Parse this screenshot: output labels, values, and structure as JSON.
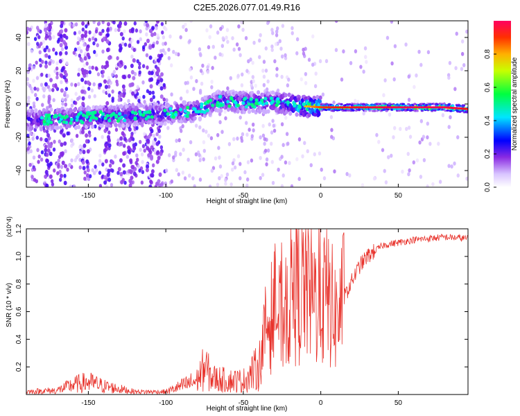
{
  "title": "C2E5.2026.077.01.49.R16",
  "chart_data": [
    {
      "type": "heatmap",
      "name": "spectrogram",
      "xlabel": "Height of straight line (km)",
      "ylabel": "Frequency (Hz)",
      "xlim": [
        -190,
        95
      ],
      "ylim": [
        -50,
        50
      ],
      "xticks": [
        -150,
        -100,
        -50,
        0,
        50
      ],
      "yticks": [
        -40,
        -20,
        0,
        20,
        40
      ],
      "colorbar": {
        "label": "Normalized spectral amplitude",
        "range": [
          0,
          1
        ],
        "ticks": [
          "0.0",
          "0.2",
          "0.4",
          "0.6",
          "0.8"
        ],
        "colormap": [
          "#ffffff",
          "#b58cff",
          "#7a00ff",
          "#0000ff",
          "#00e0ff",
          "#00ff40",
          "#ffff00",
          "#ff8000",
          "#ff0000"
        ]
      },
      "signal_trace": {
        "x": [
          -190,
          -150,
          -100,
          -80,
          -65,
          -50,
          -30,
          -15,
          0,
          20,
          50,
          80,
          95
        ],
        "frequency_hz": [
          -10,
          -8,
          -6,
          -4,
          2,
          1,
          1,
          -1,
          -2,
          -2,
          -2,
          -2,
          -3
        ],
        "peak_amplitude": [
          0.45,
          0.5,
          0.45,
          0.5,
          0.45,
          0.5,
          0.5,
          0.75,
          0.9,
          0.95,
          1.0,
          1.0,
          0.95
        ]
      }
    },
    {
      "type": "line",
      "name": "snr",
      "xlabel": "Height of straight line (km)",
      "ylabel": "SNR (10 * v/v)",
      "scale_label": "(x10^4)",
      "xlim": [
        -190,
        95
      ],
      "ylim": [
        0,
        1.2
      ],
      "xticks": [
        -150,
        -100,
        -50,
        0,
        50
      ],
      "yticks": [
        "0.2",
        "0.4",
        "0.6",
        "0.8",
        "1.0",
        "1.2"
      ],
      "color": "#e8322b",
      "series": {
        "x": [
          -190,
          -170,
          -160,
          -150,
          -140,
          -130,
          -120,
          -100,
          -90,
          -80,
          -75,
          -70,
          -60,
          -50,
          -40,
          -35,
          -30,
          -25,
          -20,
          -15,
          -10,
          -5,
          0,
          5,
          10,
          15,
          20,
          25,
          30,
          40,
          50,
          60,
          70,
          80,
          95
        ],
        "y": [
          0.02,
          0.03,
          0.07,
          0.09,
          0.06,
          0.04,
          0.02,
          0.02,
          0.06,
          0.1,
          0.2,
          0.12,
          0.1,
          0.1,
          0.2,
          0.5,
          0.6,
          0.55,
          0.7,
          0.75,
          0.8,
          0.7,
          0.7,
          0.7,
          0.55,
          0.7,
          0.82,
          0.93,
          1.0,
          1.08,
          1.1,
          1.12,
          1.13,
          1.14,
          1.13
        ]
      }
    }
  ]
}
